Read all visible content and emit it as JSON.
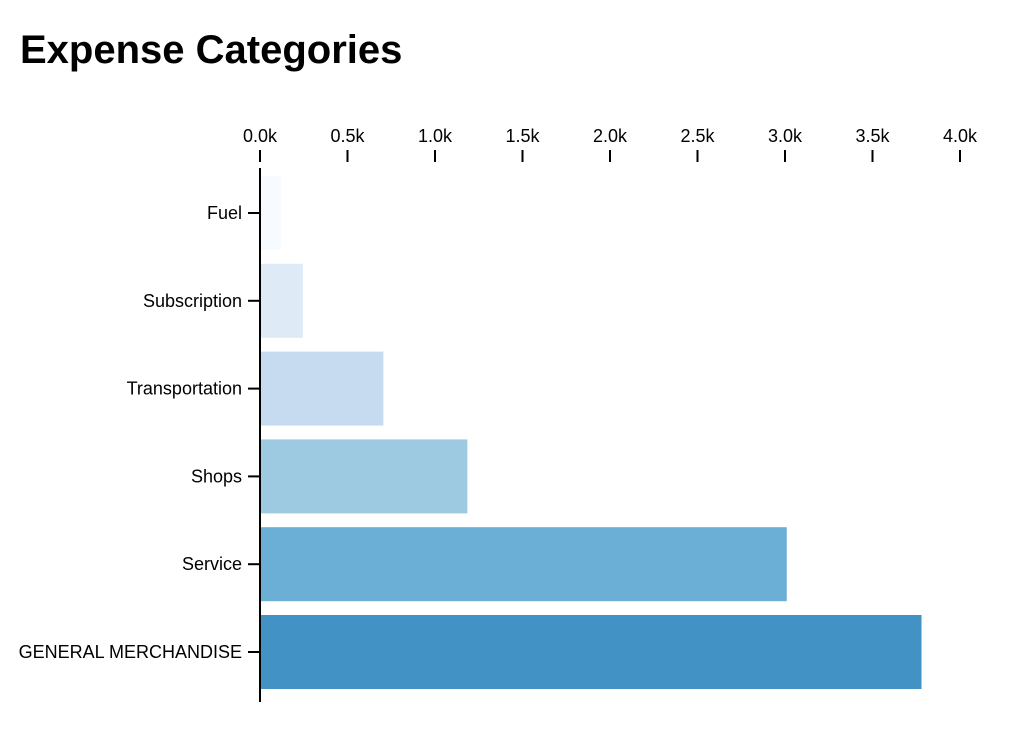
{
  "page": {
    "title": "Expense Categories"
  },
  "chart_data": {
    "type": "bar",
    "orientation": "horizontal",
    "title": "Expense Categories",
    "xlabel": "",
    "ylabel": "",
    "categories": [
      "Fuel",
      "Subscription",
      "Transportation",
      "Shops",
      "Service",
      "GENERAL MERCHANDISE"
    ],
    "values": [
      120,
      245,
      705,
      1185,
      3010,
      3780
    ],
    "colors": [
      "#f7fbff",
      "#deebf7",
      "#c6dbef",
      "#9ecae1",
      "#6baed6",
      "#4292c6"
    ],
    "xlim": [
      0,
      4000
    ],
    "x_ticks": [
      0,
      500,
      1000,
      1500,
      2000,
      2500,
      3000,
      3500,
      4000
    ],
    "x_tick_labels": [
      "0.0k",
      "0.5k",
      "1.0k",
      "1.5k",
      "2.0k",
      "2.5k",
      "3.0k",
      "3.5k",
      "4.0k"
    ],
    "x_axis_position": "top",
    "grid": false,
    "legend": "none"
  }
}
